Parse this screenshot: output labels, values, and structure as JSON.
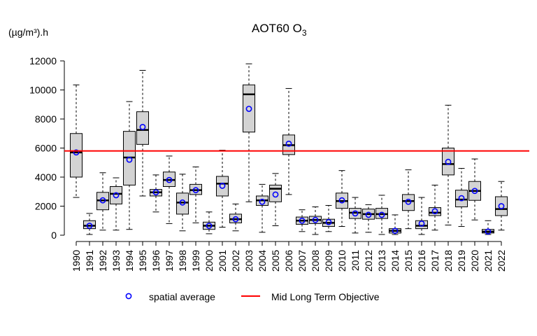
{
  "chart_data": {
    "type": "boxplot",
    "title_main": "AOT60 O",
    "title_sub": "3",
    "ylabel": "(µg/m³).h",
    "ylim": [
      0,
      12000
    ],
    "yticks": [
      0,
      2000,
      4000,
      6000,
      8000,
      10000,
      12000
    ],
    "categories": [
      "1990",
      "1991",
      "1992",
      "1993",
      "1994",
      "1995",
      "1996",
      "1997",
      "1998",
      "1999",
      "2000",
      "2001",
      "2002",
      "2003",
      "2004",
      "2005",
      "2006",
      "2007",
      "2008",
      "2009",
      "2010",
      "2011",
      "2012",
      "2013",
      "2014",
      "2015",
      "2016",
      "2017",
      "2018",
      "2019",
      "2020",
      "2021",
      "2022"
    ],
    "boxes": [
      {
        "whisker_low": 2600,
        "q1": 4000,
        "median": 5700,
        "q3": 7000,
        "whisker_high": 10350,
        "mean": 5700
      },
      {
        "whisker_low": 50,
        "q1": 450,
        "median": 650,
        "q3": 1000,
        "whisker_high": 1500,
        "mean": 650
      },
      {
        "whisker_low": 350,
        "q1": 1750,
        "median": 2400,
        "q3": 2950,
        "whisker_high": 4300,
        "mean": 2400
      },
      {
        "whisker_low": 350,
        "q1": 2150,
        "median": 2850,
        "q3": 3350,
        "whisker_high": 3950,
        "mean": 2750
      },
      {
        "whisker_low": 400,
        "q1": 3450,
        "median": 5350,
        "q3": 7150,
        "whisker_high": 9200,
        "mean": 5200
      },
      {
        "whisker_low": 2700,
        "q1": 6250,
        "median": 7250,
        "q3": 8500,
        "whisker_high": 11350,
        "mean": 7450
      },
      {
        "whisker_low": 1600,
        "q1": 2700,
        "median": 2950,
        "q3": 3150,
        "whisker_high": 4150,
        "mean": 2950
      },
      {
        "whisker_low": 800,
        "q1": 3350,
        "median": 3800,
        "q3": 4350,
        "whisker_high": 5450,
        "mean": 3800
      },
      {
        "whisker_low": 300,
        "q1": 1450,
        "median": 2250,
        "q3": 2900,
        "whisker_high": 4200,
        "mean": 2250
      },
      {
        "whisker_low": 850,
        "q1": 2800,
        "median": 3100,
        "q3": 3500,
        "whisker_high": 4700,
        "mean": 3100
      },
      {
        "whisker_low": 100,
        "q1": 400,
        "median": 650,
        "q3": 900,
        "whisker_high": 1600,
        "mean": 650
      },
      {
        "whisker_low": 550,
        "q1": 2700,
        "median": 3550,
        "q3": 4050,
        "whisker_high": 5850,
        "mean": 3400
      },
      {
        "whisker_low": 300,
        "q1": 850,
        "median": 1100,
        "q3": 1450,
        "whisker_high": 2150,
        "mean": 1100
      },
      {
        "whisker_low": 2300,
        "q1": 7100,
        "median": 9700,
        "q3": 10350,
        "whisker_high": 11800,
        "mean": 8700
      },
      {
        "whisker_low": 200,
        "q1": 2050,
        "median": 2400,
        "q3": 2700,
        "whisker_high": 3500,
        "mean": 2300
      },
      {
        "whisker_low": 650,
        "q1": 2300,
        "median": 3200,
        "q3": 3450,
        "whisker_high": 4250,
        "mean": 2800
      },
      {
        "whisker_low": 2800,
        "q1": 5550,
        "median": 6200,
        "q3": 6900,
        "whisker_high": 10100,
        "mean": 6300
      },
      {
        "whisker_low": 250,
        "q1": 750,
        "median": 1000,
        "q3": 1250,
        "whisker_high": 1750,
        "mean": 1000
      },
      {
        "whisker_low": 50,
        "q1": 800,
        "median": 1050,
        "q3": 1300,
        "whisker_high": 1950,
        "mean": 1050
      },
      {
        "whisker_low": 250,
        "q1": 600,
        "median": 850,
        "q3": 1100,
        "whisker_high": 2050,
        "mean": 900
      },
      {
        "whisker_low": 600,
        "q1": 1850,
        "median": 2350,
        "q3": 2900,
        "whisker_high": 4450,
        "mean": 2400
      },
      {
        "whisker_low": 150,
        "q1": 1150,
        "median": 1550,
        "q3": 1850,
        "whisker_high": 2600,
        "mean": 1500
      },
      {
        "whisker_low": 200,
        "q1": 1100,
        "median": 1450,
        "q3": 1800,
        "whisker_high": 2100,
        "mean": 1400
      },
      {
        "whisker_low": 50,
        "q1": 1150,
        "median": 1450,
        "q3": 1850,
        "whisker_high": 2750,
        "mean": 1400
      },
      {
        "whisker_low": 50,
        "q1": 150,
        "median": 300,
        "q3": 450,
        "whisker_high": 1400,
        "mean": 300
      },
      {
        "whisker_low": 450,
        "q1": 1700,
        "median": 2350,
        "q3": 2800,
        "whisker_high": 4500,
        "mean": 2300
      },
      {
        "whisker_low": 50,
        "q1": 450,
        "median": 650,
        "q3": 1000,
        "whisker_high": 2600,
        "mean": 800
      },
      {
        "whisker_low": 350,
        "q1": 1350,
        "median": 1550,
        "q3": 1900,
        "whisker_high": 3450,
        "mean": 1650
      },
      {
        "whisker_low": 700,
        "q1": 4150,
        "median": 4900,
        "q3": 6000,
        "whisker_high": 8950,
        "mean": 5050
      },
      {
        "whisker_low": 600,
        "q1": 1950,
        "median": 2450,
        "q3": 3100,
        "whisker_high": 4600,
        "mean": 2550
      },
      {
        "whisker_low": 1050,
        "q1": 2400,
        "median": 3050,
        "q3": 3700,
        "whisker_high": 5250,
        "mean": 3050
      },
      {
        "whisker_low": 50,
        "q1": 150,
        "median": 250,
        "q3": 400,
        "whisker_high": 1000,
        "mean": 250
      },
      {
        "whisker_low": 350,
        "q1": 1350,
        "median": 1800,
        "q3": 2650,
        "whisker_high": 3700,
        "mean": 2000
      }
    ],
    "reference_line": {
      "value": 5800,
      "label": "Mid Long Term Objective",
      "color": "#ff0000"
    },
    "legend": {
      "placement": "bottom",
      "items": [
        {
          "label": "spatial average",
          "marker": "circle",
          "color": "#0000ff"
        },
        {
          "label": "Mid Long Term Objective",
          "marker": "line",
          "color": "#ff0000"
        }
      ]
    },
    "colors": {
      "box_fill": "#d3d3d3",
      "mean_marker": "#0000ff",
      "median": "#000000"
    },
    "grid": false
  }
}
